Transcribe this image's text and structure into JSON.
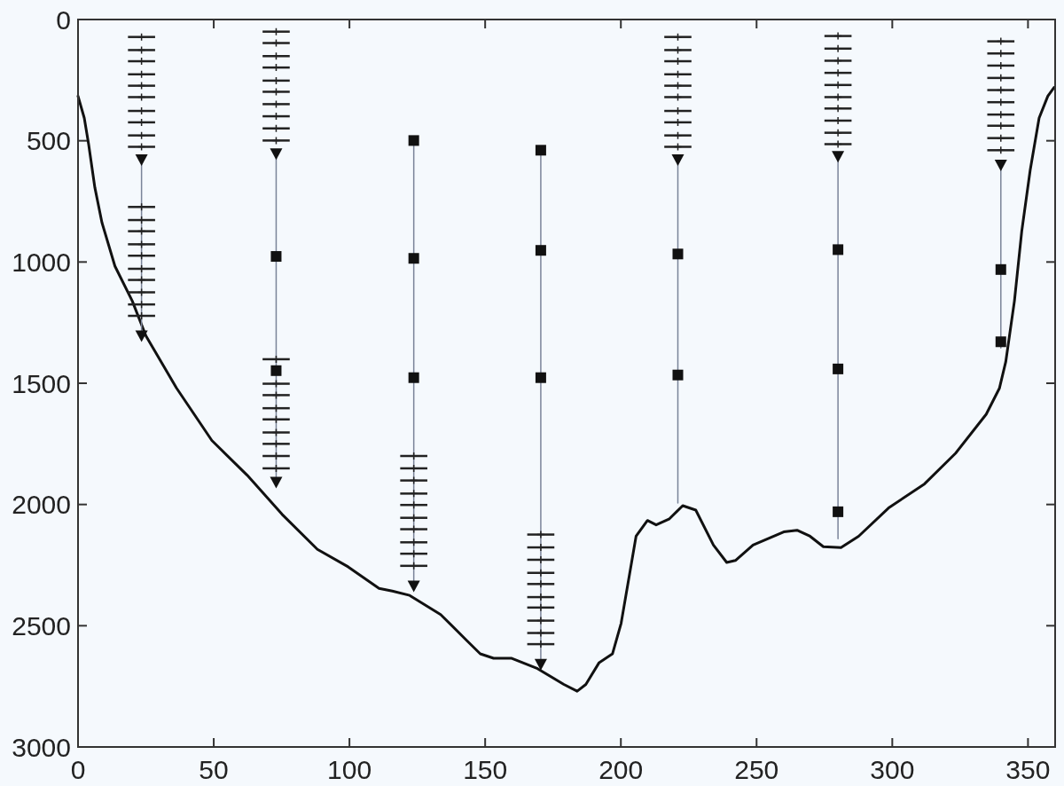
{
  "chart_data": {
    "type": "line",
    "xlim": [
      0,
      360
    ],
    "ylim": [
      3000,
      0
    ],
    "xticks": [
      0,
      50,
      100,
      150,
      200,
      250,
      300,
      350
    ],
    "yticks": [
      0,
      500,
      1000,
      1500,
      2000,
      2500,
      3000
    ],
    "grid": false,
    "series": [
      {
        "color": "#111111",
        "x": [
          0,
          2.3,
          3.9,
          6.2,
          8.8,
          13.6,
          20,
          25,
          36.3,
          49.3,
          62.3,
          75.2,
          88.2,
          99.5,
          110.9,
          115.8,
          122.2,
          133.6,
          143.3,
          148.2,
          153.1,
          159.6,
          169.3,
          179,
          183.9,
          187.1,
          192,
          196.9,
          200.1,
          203.4,
          205.6,
          209.8,
          213,
          217.9,
          222.8,
          227.6,
          234.1,
          239,
          242.2,
          248.7,
          260,
          264.9,
          269.7,
          274.6,
          281.1,
          287.6,
          298.9,
          311.9,
          323.3,
          334.6,
          339.5,
          341.8,
          345,
          347.7,
          350.8,
          354.1,
          357.3,
          359.6
        ],
        "values": [
          316,
          406,
          514,
          693,
          837,
          1017,
          1161,
          1304,
          1520,
          1736,
          1879,
          2041,
          2185,
          2257,
          2346,
          2357,
          2375,
          2454,
          2562,
          2616,
          2634,
          2634,
          2677,
          2742,
          2770,
          2742,
          2652,
          2616,
          2490,
          2275,
          2131,
          2066,
          2084,
          2059,
          2005,
          2023,
          2167,
          2239,
          2231,
          2167,
          2113,
          2106,
          2131,
          2174,
          2178,
          2131,
          2012,
          1915,
          1789,
          1628,
          1520,
          1412,
          1161,
          873,
          622,
          406,
          316,
          280
        ]
      },
      {
        "type": "line",
        "color": "#7a8499",
        "x": [
          23.4,
          23.4
        ],
        "values": [
          578,
          1304
        ]
      },
      {
        "type": "line",
        "color": "#7a8499",
        "x": [
          73,
          73
        ],
        "values": [
          553,
          1908
        ]
      },
      {
        "type": "line",
        "color": "#7a8499",
        "x": [
          123.7,
          123.7
        ],
        "values": [
          499,
          2336
        ]
      },
      {
        "type": "line",
        "color": "#7a8499",
        "x": [
          170.5,
          170.5
        ],
        "values": [
          539,
          2659
        ]
      },
      {
        "type": "line",
        "color": "#7a8499",
        "x": [
          221,
          221
        ],
        "values": [
          578,
          1994
        ]
      },
      {
        "type": "line",
        "color": "#7a8499",
        "x": [
          280,
          280
        ],
        "values": [
          564,
          2141
        ]
      },
      {
        "type": "line",
        "color": "#7a8499",
        "x": [
          340,
          340
        ],
        "values": [
          600,
          1355
        ]
      },
      {
        "type": "scatter",
        "marker": "cross",
        "color": "#222222",
        "x": [
          23.4,
          23.4,
          23.4,
          23.4,
          23.4,
          23.4,
          23.4,
          23.4,
          23.4,
          23.4,
          23.4,
          23.4,
          23.4,
          23.4,
          23.4,
          23.4,
          23.4,
          23.4,
          23.4,
          23.4,
          73,
          73,
          73,
          73,
          73,
          73,
          73,
          73,
          73,
          73,
          73,
          73,
          73,
          73,
          73,
          73,
          73,
          73,
          73,
          123.7,
          123.7,
          123.7,
          123.7,
          123.7,
          123.7,
          123.7,
          123.7,
          123.7,
          123.7,
          170.5,
          170.5,
          170.5,
          170.5,
          170.5,
          170.5,
          170.5,
          170.5,
          170.5,
          170.5,
          221,
          221,
          221,
          221,
          221,
          221,
          221,
          221,
          221,
          221,
          280,
          280,
          280,
          280,
          280,
          280,
          280,
          280,
          280,
          280,
          340,
          340,
          340,
          340,
          340,
          340,
          340,
          340,
          340,
          340
        ],
        "values": [
          72,
          126,
          172,
          226,
          273,
          320,
          377,
          424,
          478,
          525,
          773,
          827,
          873,
          927,
          974,
          1028,
          1074,
          1125,
          1175,
          1222,
          50,
          97,
          151,
          198,
          252,
          298,
          349,
          399,
          449,
          499,
          1401,
          1502,
          1549,
          1603,
          1649,
          1703,
          1750,
          1800,
          1851,
          1800,
          1851,
          1901,
          1955,
          2002,
          2055,
          2102,
          2156,
          2203,
          2253,
          2124,
          2177,
          2228,
          2282,
          2328,
          2382,
          2425,
          2479,
          2530,
          2576,
          72,
          126,
          172,
          226,
          273,
          320,
          377,
          424,
          478,
          525,
          68,
          120,
          170,
          220,
          270,
          320,
          367,
          417,
          467,
          514,
          90,
          140,
          190,
          241,
          291,
          341,
          392,
          438,
          489,
          539
        ],
        "xerrors": [
          5,
          5,
          5,
          5,
          5,
          5,
          5,
          5,
          5,
          5,
          5,
          5,
          5,
          5,
          5,
          5,
          5,
          5,
          5,
          5,
          5,
          5,
          5,
          5,
          5,
          5,
          5,
          5,
          5,
          5,
          5,
          5,
          5,
          5,
          5,
          5,
          5,
          5,
          5,
          5,
          5,
          5,
          5,
          5,
          5,
          5,
          5,
          5,
          5,
          5,
          5,
          5,
          5,
          5,
          5,
          5,
          5,
          5,
          5,
          5,
          5,
          5,
          5,
          5,
          5,
          5,
          5,
          5,
          5,
          5,
          5,
          5,
          5,
          5,
          5,
          5,
          5,
          5,
          5,
          5,
          5,
          5,
          5,
          5,
          5,
          5,
          5,
          5,
          5
        ]
      },
      {
        "type": "scatter",
        "marker": "triangle",
        "color": "#111111",
        "x": [
          23.4,
          23.4,
          73,
          73,
          123.7,
          170.5,
          221,
          280,
          340
        ],
        "values": [
          578,
          1304,
          553,
          1908,
          2336,
          2659,
          578,
          564,
          600
        ]
      },
      {
        "type": "scatter",
        "marker": "square",
        "color": "#111111",
        "x": [
          73,
          73,
          123.7,
          123.7,
          123.7,
          170.5,
          170.5,
          170.5,
          221,
          221,
          280,
          280,
          280,
          340,
          340
        ],
        "values": [
          977,
          1448,
          499,
          985,
          1477,
          539,
          952,
          1477,
          967,
          1466,
          949,
          1441,
          2030,
          1031,
          1329
        ]
      }
    ]
  }
}
